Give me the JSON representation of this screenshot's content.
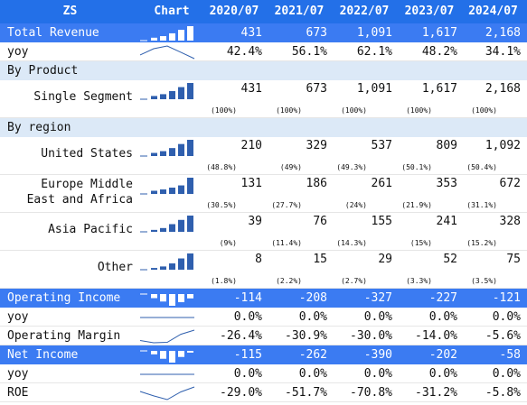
{
  "header": {
    "ticker": "ZS",
    "chart": "Chart",
    "years": [
      "2020/07",
      "2021/07",
      "2022/07",
      "2023/07",
      "2024/07"
    ]
  },
  "colors": {
    "header": "#2370e8",
    "highlight": "#3b7bf2",
    "section": "#dce9f7",
    "spark": "#2f5fae"
  },
  "rows": [
    {
      "label": "Total Revenue",
      "style": "blue",
      "values": [
        "431",
        "673",
        "1,091",
        "1,617",
        "2,168"
      ],
      "spark": "bar",
      "spark_values": [
        431,
        673,
        1091,
        1617,
        2168
      ]
    },
    {
      "label": "yoy",
      "style": "white",
      "values": [
        "42.4%",
        "56.1%",
        "62.1%",
        "48.2%",
        "34.1%"
      ],
      "spark": "line",
      "spark_values": [
        42.4,
        56.1,
        62.1,
        48.2,
        34.1
      ]
    },
    {
      "label": "By Product",
      "style": "sect",
      "section": true
    },
    {
      "label": "Single Segment",
      "style": "white",
      "tall": true,
      "values": [
        "431",
        "673",
        "1,091",
        "1,617",
        "2,168"
      ],
      "pcts": [
        "(100%)",
        "(100%)",
        "(100%)",
        "(100%)",
        "(100%)"
      ],
      "spark": "bar",
      "spark_values": [
        431,
        673,
        1091,
        1617,
        2168
      ]
    },
    {
      "label": "By region",
      "style": "sect",
      "section": true
    },
    {
      "label": "United States",
      "style": "white",
      "tall": true,
      "values": [
        "210",
        "329",
        "537",
        "809",
        "1,092"
      ],
      "pcts": [
        "(48.8%)",
        "(49%)",
        "(49.3%)",
        "(50.1%)",
        "(50.4%)"
      ],
      "spark": "bar",
      "spark_values": [
        210,
        329,
        537,
        809,
        1092
      ]
    },
    {
      "label": "Europe Middle",
      "label2": "East and Africa",
      "style": "white",
      "tall": true,
      "values": [
        "131",
        "186",
        "261",
        "353",
        "672"
      ],
      "pcts": [
        "(30.5%)",
        "(27.7%)",
        "(24%)",
        "(21.9%)",
        "(31.1%)"
      ],
      "spark": "bar",
      "spark_values": [
        131,
        186,
        261,
        353,
        672
      ]
    },
    {
      "label": "Asia Pacific",
      "style": "white",
      "tall": true,
      "values": [
        "39",
        "76",
        "155",
        "241",
        "328"
      ],
      "pcts": [
        "(9%)",
        "(11.4%)",
        "(14.3%)",
        "(15%)",
        "(15.2%)"
      ],
      "spark": "bar",
      "spark_values": [
        39,
        76,
        155,
        241,
        328
      ]
    },
    {
      "label": "Other",
      "style": "white",
      "tall": true,
      "values": [
        "8",
        "15",
        "29",
        "52",
        "75"
      ],
      "pcts": [
        "(1.8%)",
        "(2.2%)",
        "(2.7%)",
        "(3.3%)",
        "(3.5%)"
      ],
      "spark": "bar",
      "spark_values": [
        8,
        15,
        29,
        52,
        75
      ]
    },
    {
      "label": "Operating Income",
      "style": "blue",
      "values": [
        "-114",
        "-208",
        "-327",
        "-227",
        "-121"
      ],
      "spark": "bar",
      "spark_values": [
        -114,
        -208,
        -327,
        -227,
        -121
      ]
    },
    {
      "label": "yoy",
      "style": "white",
      "values": [
        "0.0%",
        "0.0%",
        "0.0%",
        "0.0%",
        "0.0%"
      ],
      "spark": "line",
      "spark_values": [
        0,
        0,
        0,
        0,
        0
      ]
    },
    {
      "label": "Operating Margin",
      "style": "white",
      "values": [
        "-26.4%",
        "-30.9%",
        "-30.0%",
        "-14.0%",
        "-5.6%"
      ],
      "spark": "line",
      "spark_values": [
        -26.4,
        -30.9,
        -30.0,
        -14.0,
        -5.6
      ]
    },
    {
      "label": "Net Income",
      "style": "blue",
      "values": [
        "-115",
        "-262",
        "-390",
        "-202",
        "-58"
      ],
      "spark": "bar",
      "spark_values": [
        -115,
        -262,
        -390,
        -202,
        -58
      ]
    },
    {
      "label": "yoy",
      "style": "white",
      "values": [
        "0.0%",
        "0.0%",
        "0.0%",
        "0.0%",
        "0.0%"
      ],
      "spark": "line",
      "spark_values": [
        0,
        0,
        0,
        0,
        0
      ]
    },
    {
      "label": "ROE",
      "style": "white",
      "values": [
        "-29.0%",
        "-51.7%",
        "-70.8%",
        "-31.2%",
        "-5.8%"
      ],
      "spark": "line",
      "spark_values": [
        -29.0,
        -51.7,
        -70.8,
        -31.2,
        -5.8
      ]
    }
  ],
  "chart_data": {
    "type": "table",
    "columns": [
      "2020/07",
      "2021/07",
      "2022/07",
      "2023/07",
      "2024/07"
    ],
    "series": [
      {
        "name": "Total Revenue",
        "values": [
          431,
          673,
          1091,
          1617,
          2168
        ]
      },
      {
        "name": "yoy",
        "values": [
          42.4,
          56.1,
          62.1,
          48.2,
          34.1
        ]
      },
      {
        "name": "Single Segment",
        "values": [
          431,
          673,
          1091,
          1617,
          2168
        ]
      },
      {
        "name": "United States",
        "values": [
          210,
          329,
          537,
          809,
          1092
        ]
      },
      {
        "name": "Europe Middle East and Africa",
        "values": [
          131,
          186,
          261,
          353,
          672
        ]
      },
      {
        "name": "Asia Pacific",
        "values": [
          39,
          76,
          155,
          241,
          328
        ]
      },
      {
        "name": "Other",
        "values": [
          8,
          15,
          29,
          52,
          75
        ]
      },
      {
        "name": "Operating Income",
        "values": [
          -114,
          -208,
          -327,
          -227,
          -121
        ]
      },
      {
        "name": "Operating Margin",
        "values": [
          -26.4,
          -30.9,
          -30.0,
          -14.0,
          -5.6
        ]
      },
      {
        "name": "Net Income",
        "values": [
          -115,
          -262,
          -390,
          -202,
          -58
        ]
      },
      {
        "name": "ROE",
        "values": [
          -29.0,
          -51.7,
          -70.8,
          -31.2,
          -5.8
        ]
      }
    ]
  }
}
